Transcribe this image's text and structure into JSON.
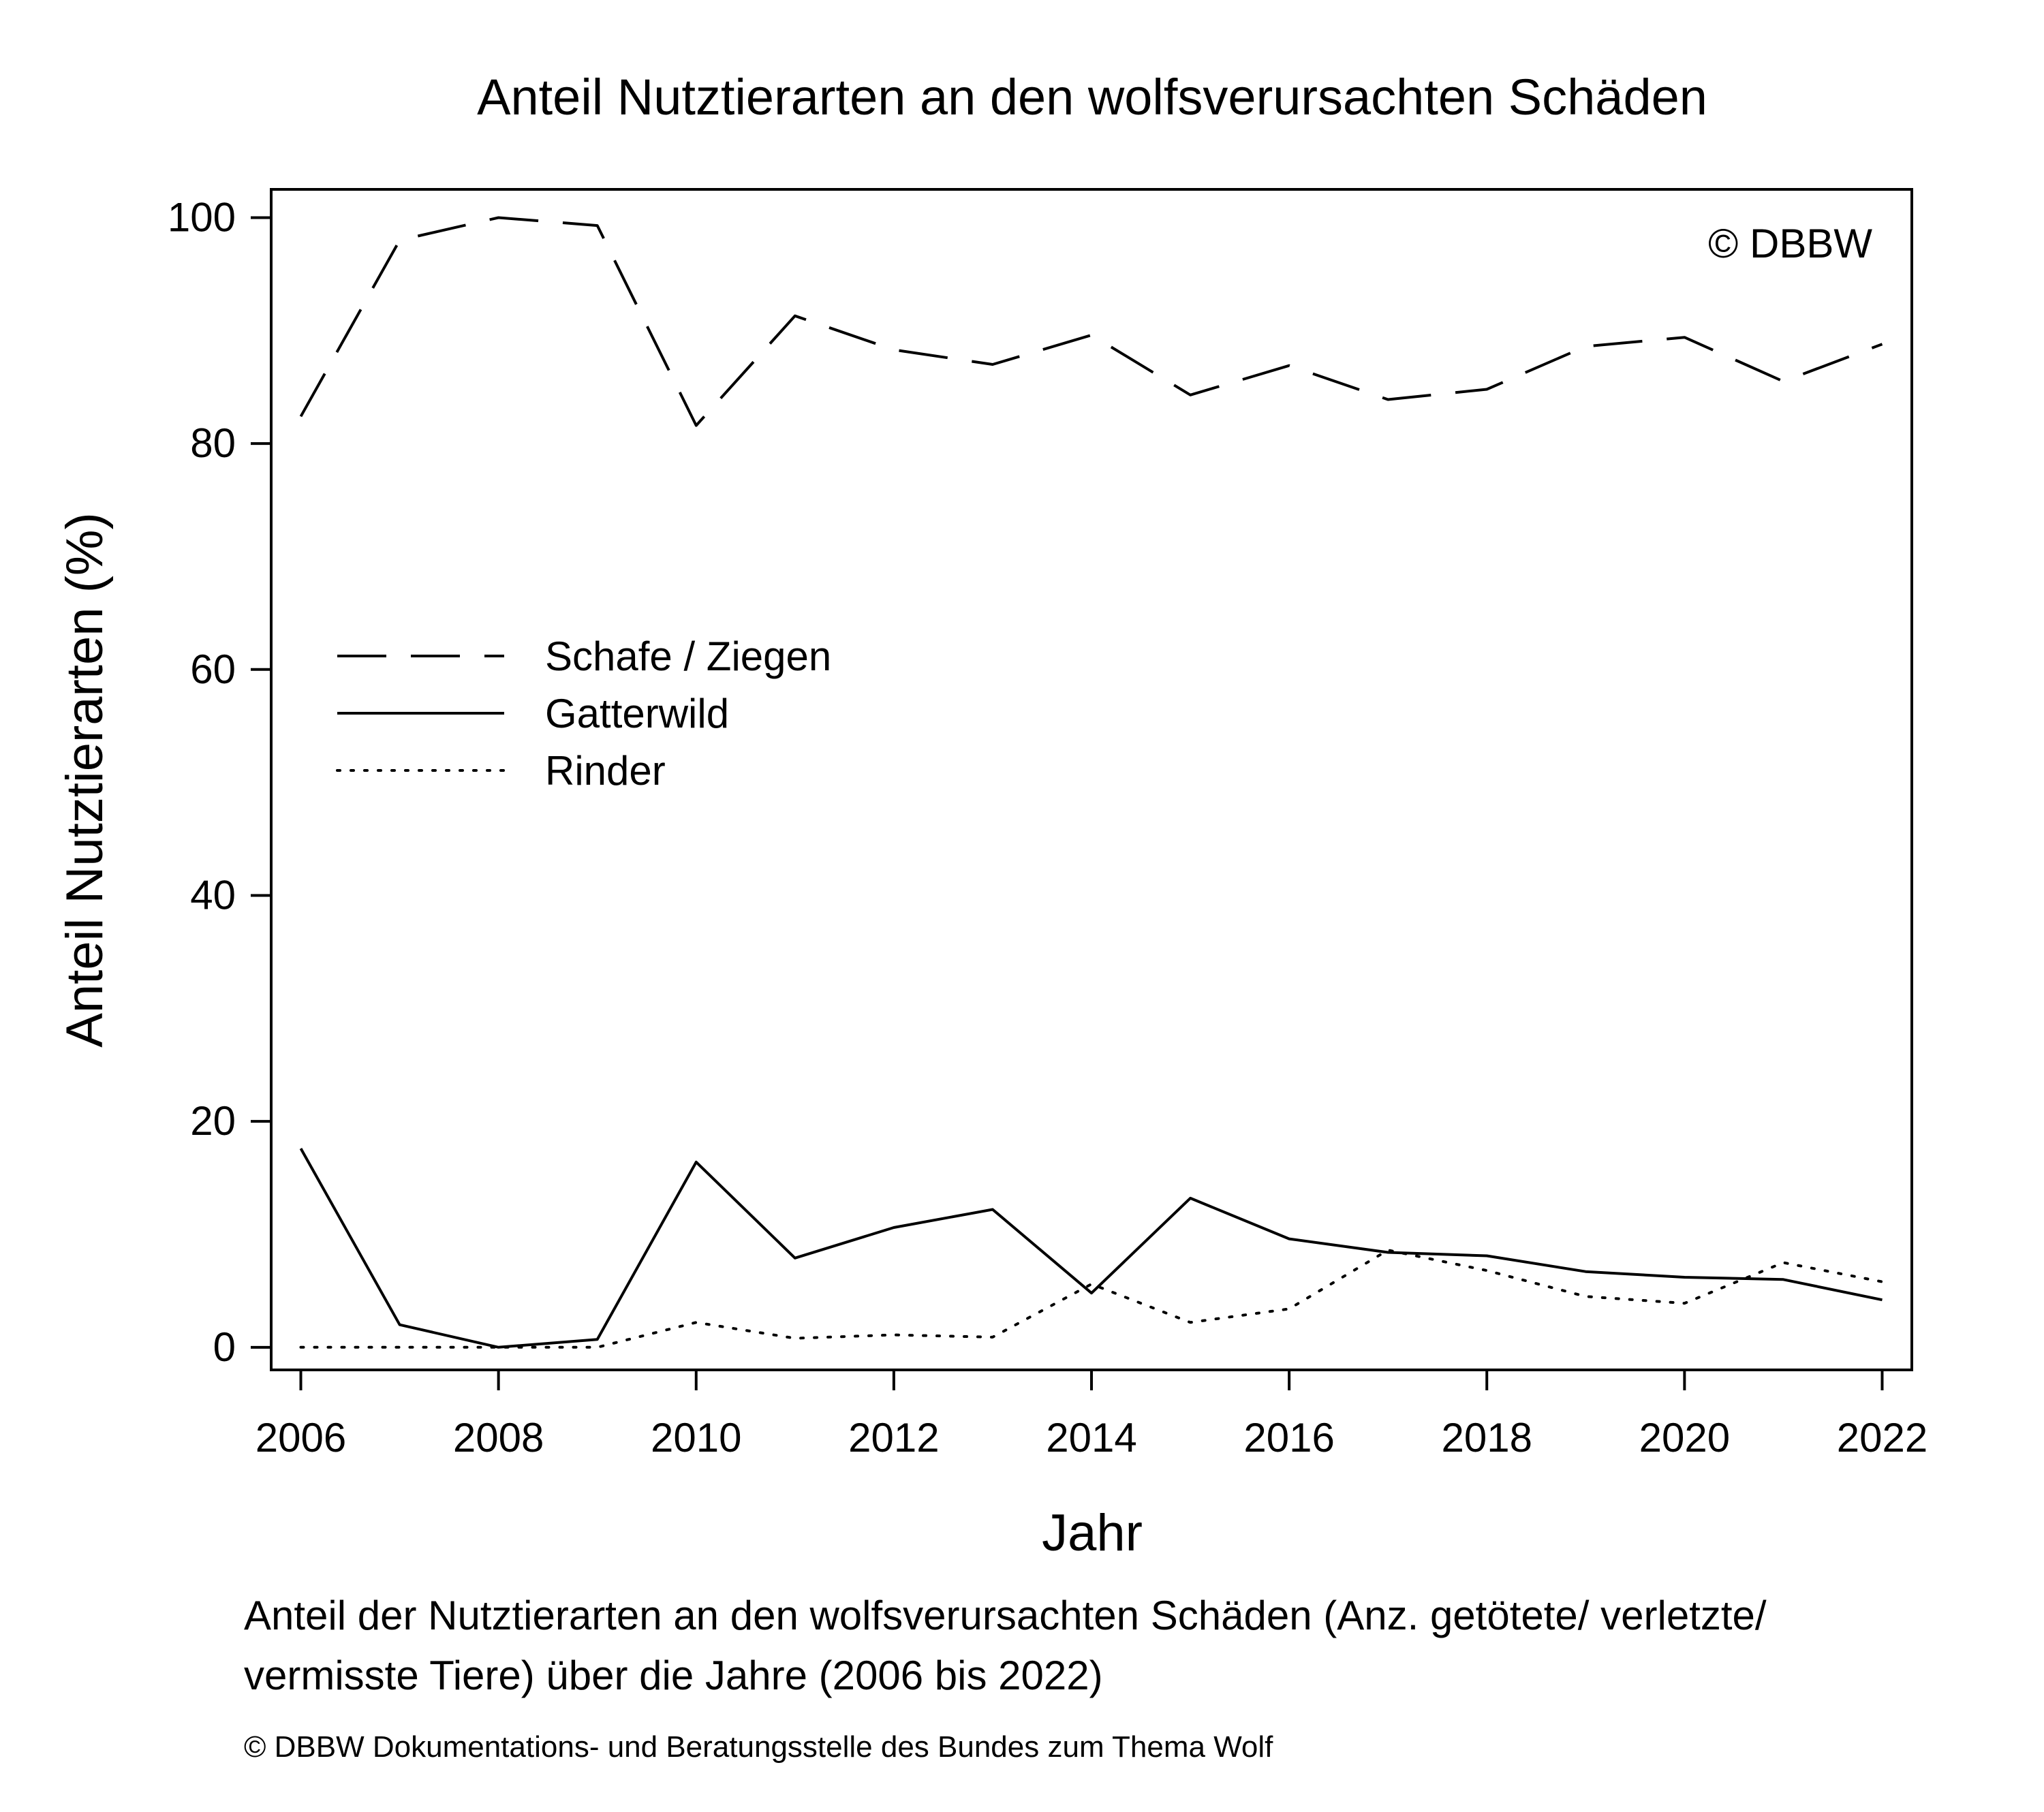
{
  "chart_data": {
    "type": "line",
    "title": "Anteil Nutztierarten an den wolfsverursachten Schäden",
    "xlabel": "Jahr",
    "ylabel": "Anteil Nutztierarten (%)",
    "x": [
      2006,
      2007,
      2008,
      2009,
      2010,
      2011,
      2012,
      2013,
      2014,
      2015,
      2016,
      2017,
      2018,
      2019,
      2020,
      2021,
      2022
    ],
    "xlim": [
      2005.7,
      2022.3
    ],
    "ylim": [
      -2,
      102.5
    ],
    "xticks": [
      "2006",
      "2008",
      "2010",
      "2012",
      "2014",
      "2016",
      "2018",
      "2020",
      "2022"
    ],
    "yticks": [
      "0",
      "20",
      "40",
      "60",
      "80",
      "100"
    ],
    "grid": false,
    "legend_position": "center-left",
    "series": [
      {
        "name": "Schafe / Ziegen",
        "line_style": "dashed",
        "values": [
          82.4,
          98.0,
          100.0,
          99.3,
          81.6,
          91.3,
          88.3,
          87.0,
          89.6,
          84.3,
          86.9,
          83.9,
          84.8,
          88.6,
          89.4,
          85.5,
          88.8
        ]
      },
      {
        "name": "Gatterwild",
        "line_style": "solid",
        "values": [
          17.6,
          2.0,
          0.0,
          0.7,
          16.4,
          7.9,
          10.6,
          12.2,
          4.8,
          13.2,
          9.6,
          8.4,
          8.1,
          6.7,
          6.2,
          6.0,
          4.2
        ]
      },
      {
        "name": "Rinder",
        "line_style": "dotted",
        "values": [
          0.0,
          0.0,
          0.0,
          0.0,
          2.2,
          0.8,
          1.1,
          0.9,
          5.6,
          2.2,
          3.4,
          8.6,
          6.8,
          4.5,
          3.9,
          7.5,
          5.8
        ]
      }
    ],
    "annotation": "© DBBW"
  },
  "caption": "Anteil der Nutztierarten an den wolfsverursachten Schäden (Anz. getötete/ verletzte/\nvermisste Tiere) über die Jahre (2006 bis 2022)",
  "source": "© DBBW Dokumentations- und Beratungsstelle des Bundes zum Thema Wolf"
}
